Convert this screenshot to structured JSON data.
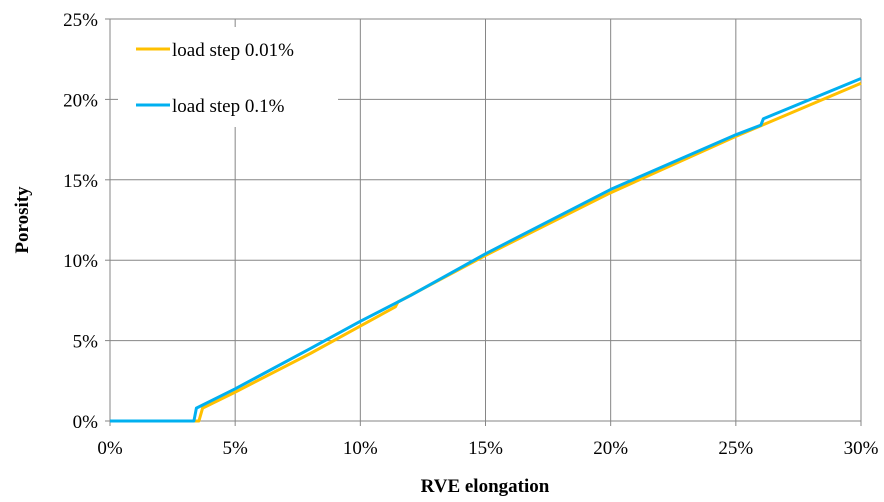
{
  "chart_data": {
    "type": "line",
    "title": "",
    "xlabel": "RVE elongation",
    "ylabel": "Porosity",
    "xlim": [
      0,
      30
    ],
    "ylim": [
      0,
      25
    ],
    "x_ticks": [
      0,
      5,
      10,
      15,
      20,
      25,
      30
    ],
    "x_tick_labels": [
      "0%",
      "5%",
      "10%",
      "15%",
      "20%",
      "25%",
      "30%"
    ],
    "y_ticks": [
      0,
      5,
      10,
      15,
      20,
      25
    ],
    "y_tick_labels": [
      "0%",
      "5%",
      "10%",
      "15%",
      "20%",
      "25%"
    ],
    "grid": true,
    "legend_position": "top-left",
    "series": [
      {
        "name": "load step 0.01%",
        "color": "#FFC000",
        "points": [
          [
            0,
            0
          ],
          [
            3.55,
            0
          ],
          [
            3.7,
            0.8
          ],
          [
            5,
            1.8
          ],
          [
            8,
            4.2
          ],
          [
            10,
            5.9
          ],
          [
            11.4,
            7.1
          ],
          [
            11.5,
            7.4
          ],
          [
            15,
            10.3
          ],
          [
            20,
            14.2
          ],
          [
            25,
            17.7
          ],
          [
            30,
            21.0
          ]
        ]
      },
      {
        "name": "load step 0.1%",
        "color": "#00B0F0",
        "points": [
          [
            0,
            0
          ],
          [
            3.35,
            0
          ],
          [
            3.45,
            0.8
          ],
          [
            5,
            2.0
          ],
          [
            8,
            4.5
          ],
          [
            10,
            6.2
          ],
          [
            12,
            7.8
          ],
          [
            15,
            10.4
          ],
          [
            20,
            14.4
          ],
          [
            25,
            17.8
          ],
          [
            26,
            18.4
          ],
          [
            26.1,
            18.8
          ],
          [
            30,
            21.3
          ]
        ]
      }
    ]
  }
}
